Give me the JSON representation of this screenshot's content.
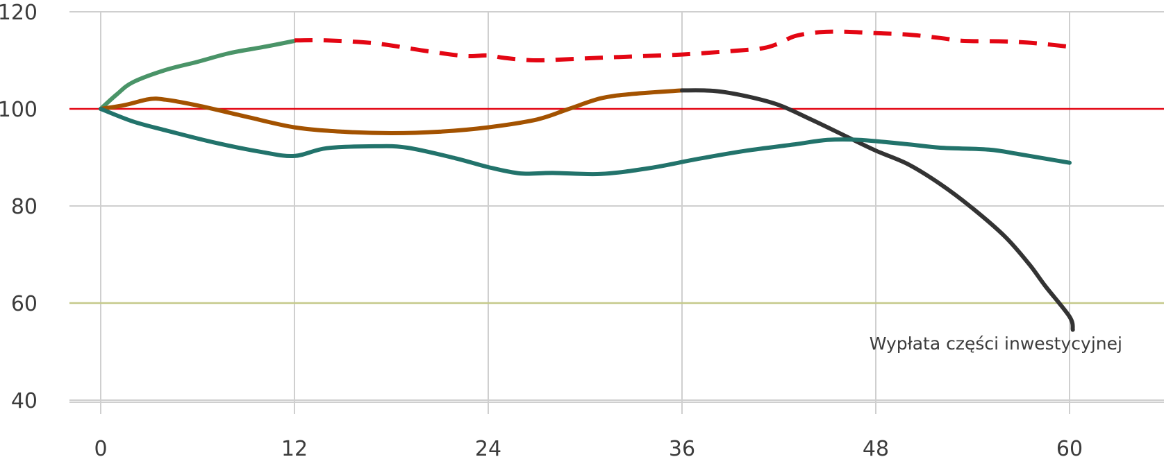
{
  "chart_data": {
    "type": "line",
    "xlim": [
      0,
      66
    ],
    "ylim": [
      40,
      120
    ],
    "x_ticks": [
      0,
      12,
      24,
      36,
      48,
      60
    ],
    "y_ticks": [
      40,
      60,
      80,
      100,
      120
    ],
    "grid": true,
    "reference_lines": [
      {
        "y": 100,
        "color": "#e30613"
      },
      {
        "y": 60,
        "color": "#c5c98a"
      }
    ],
    "annotation": {
      "text": "Wypłata części inwestycyjnej",
      "x": 47.6,
      "y": 50
    },
    "series": [
      {
        "color": "#4a9468",
        "dash": false,
        "points": [
          [
            0,
            100
          ],
          [
            1,
            103
          ],
          [
            2,
            105.5
          ],
          [
            4,
            108
          ],
          [
            6,
            109.7
          ],
          [
            8,
            111.5
          ],
          [
            10,
            112.7
          ],
          [
            12,
            114
          ]
        ]
      },
      {
        "color": "#e30613",
        "dash": true,
        "points": [
          [
            12,
            114.1
          ],
          [
            14,
            114.1
          ],
          [
            17,
            113.5
          ],
          [
            20,
            112
          ],
          [
            22.5,
            110.9
          ],
          [
            24,
            111
          ],
          [
            25,
            110.5
          ],
          [
            27,
            110
          ],
          [
            30,
            110.4
          ],
          [
            33,
            110.8
          ],
          [
            36,
            111.2
          ],
          [
            39,
            111.9
          ],
          [
            41,
            112.5
          ],
          [
            42,
            113.5
          ],
          [
            43,
            115
          ],
          [
            44.5,
            115.8
          ],
          [
            46,
            115.9
          ],
          [
            48,
            115.6
          ],
          [
            50,
            115.3
          ],
          [
            52,
            114.6
          ],
          [
            53.5,
            114
          ],
          [
            56,
            113.9
          ],
          [
            58,
            113.5
          ],
          [
            60,
            112.8
          ]
        ]
      },
      {
        "color": "#a35200",
        "dash": false,
        "points": [
          [
            0,
            100
          ],
          [
            1.5,
            100.8
          ],
          [
            3,
            102
          ],
          [
            4,
            101.9
          ],
          [
            6,
            100.7
          ],
          [
            9,
            98.4
          ],
          [
            12,
            96.2
          ],
          [
            15,
            95.3
          ],
          [
            18,
            95
          ],
          [
            21,
            95.3
          ],
          [
            24,
            96.2
          ],
          [
            27,
            97.8
          ],
          [
            29,
            100
          ],
          [
            31,
            102.2
          ],
          [
            33,
            103.1
          ],
          [
            36,
            103.8
          ]
        ]
      },
      {
        "color": "#333333",
        "dash": false,
        "points": [
          [
            36,
            103.8
          ],
          [
            38,
            103.7
          ],
          [
            40,
            102.6
          ],
          [
            42,
            100.8
          ],
          [
            44,
            97.8
          ],
          [
            46,
            94.6
          ],
          [
            48,
            91.4
          ],
          [
            50,
            88.6
          ],
          [
            52,
            84.5
          ],
          [
            54,
            79.5
          ],
          [
            56,
            73.7
          ],
          [
            57.5,
            68
          ],
          [
            58.5,
            63.5
          ],
          [
            60,
            57.2
          ],
          [
            60.2,
            54.5
          ]
        ]
      },
      {
        "color": "#22736b",
        "dash": false,
        "points": [
          [
            0,
            100
          ],
          [
            2,
            97.4
          ],
          [
            4,
            95.6
          ],
          [
            7,
            93.1
          ],
          [
            10,
            91.1
          ],
          [
            12,
            90.3
          ],
          [
            14,
            91.9
          ],
          [
            17,
            92.3
          ],
          [
            19,
            92
          ],
          [
            22,
            89.8
          ],
          [
            24,
            88
          ],
          [
            26,
            86.7
          ],
          [
            28,
            86.8
          ],
          [
            31,
            86.6
          ],
          [
            34,
            87.8
          ],
          [
            37,
            89.7
          ],
          [
            40,
            91.4
          ],
          [
            43,
            92.7
          ],
          [
            45,
            93.6
          ],
          [
            47,
            93.6
          ],
          [
            50,
            92.7
          ],
          [
            52,
            92
          ],
          [
            55,
            91.6
          ],
          [
            57,
            90.6
          ],
          [
            60,
            88.9
          ]
        ]
      }
    ]
  }
}
